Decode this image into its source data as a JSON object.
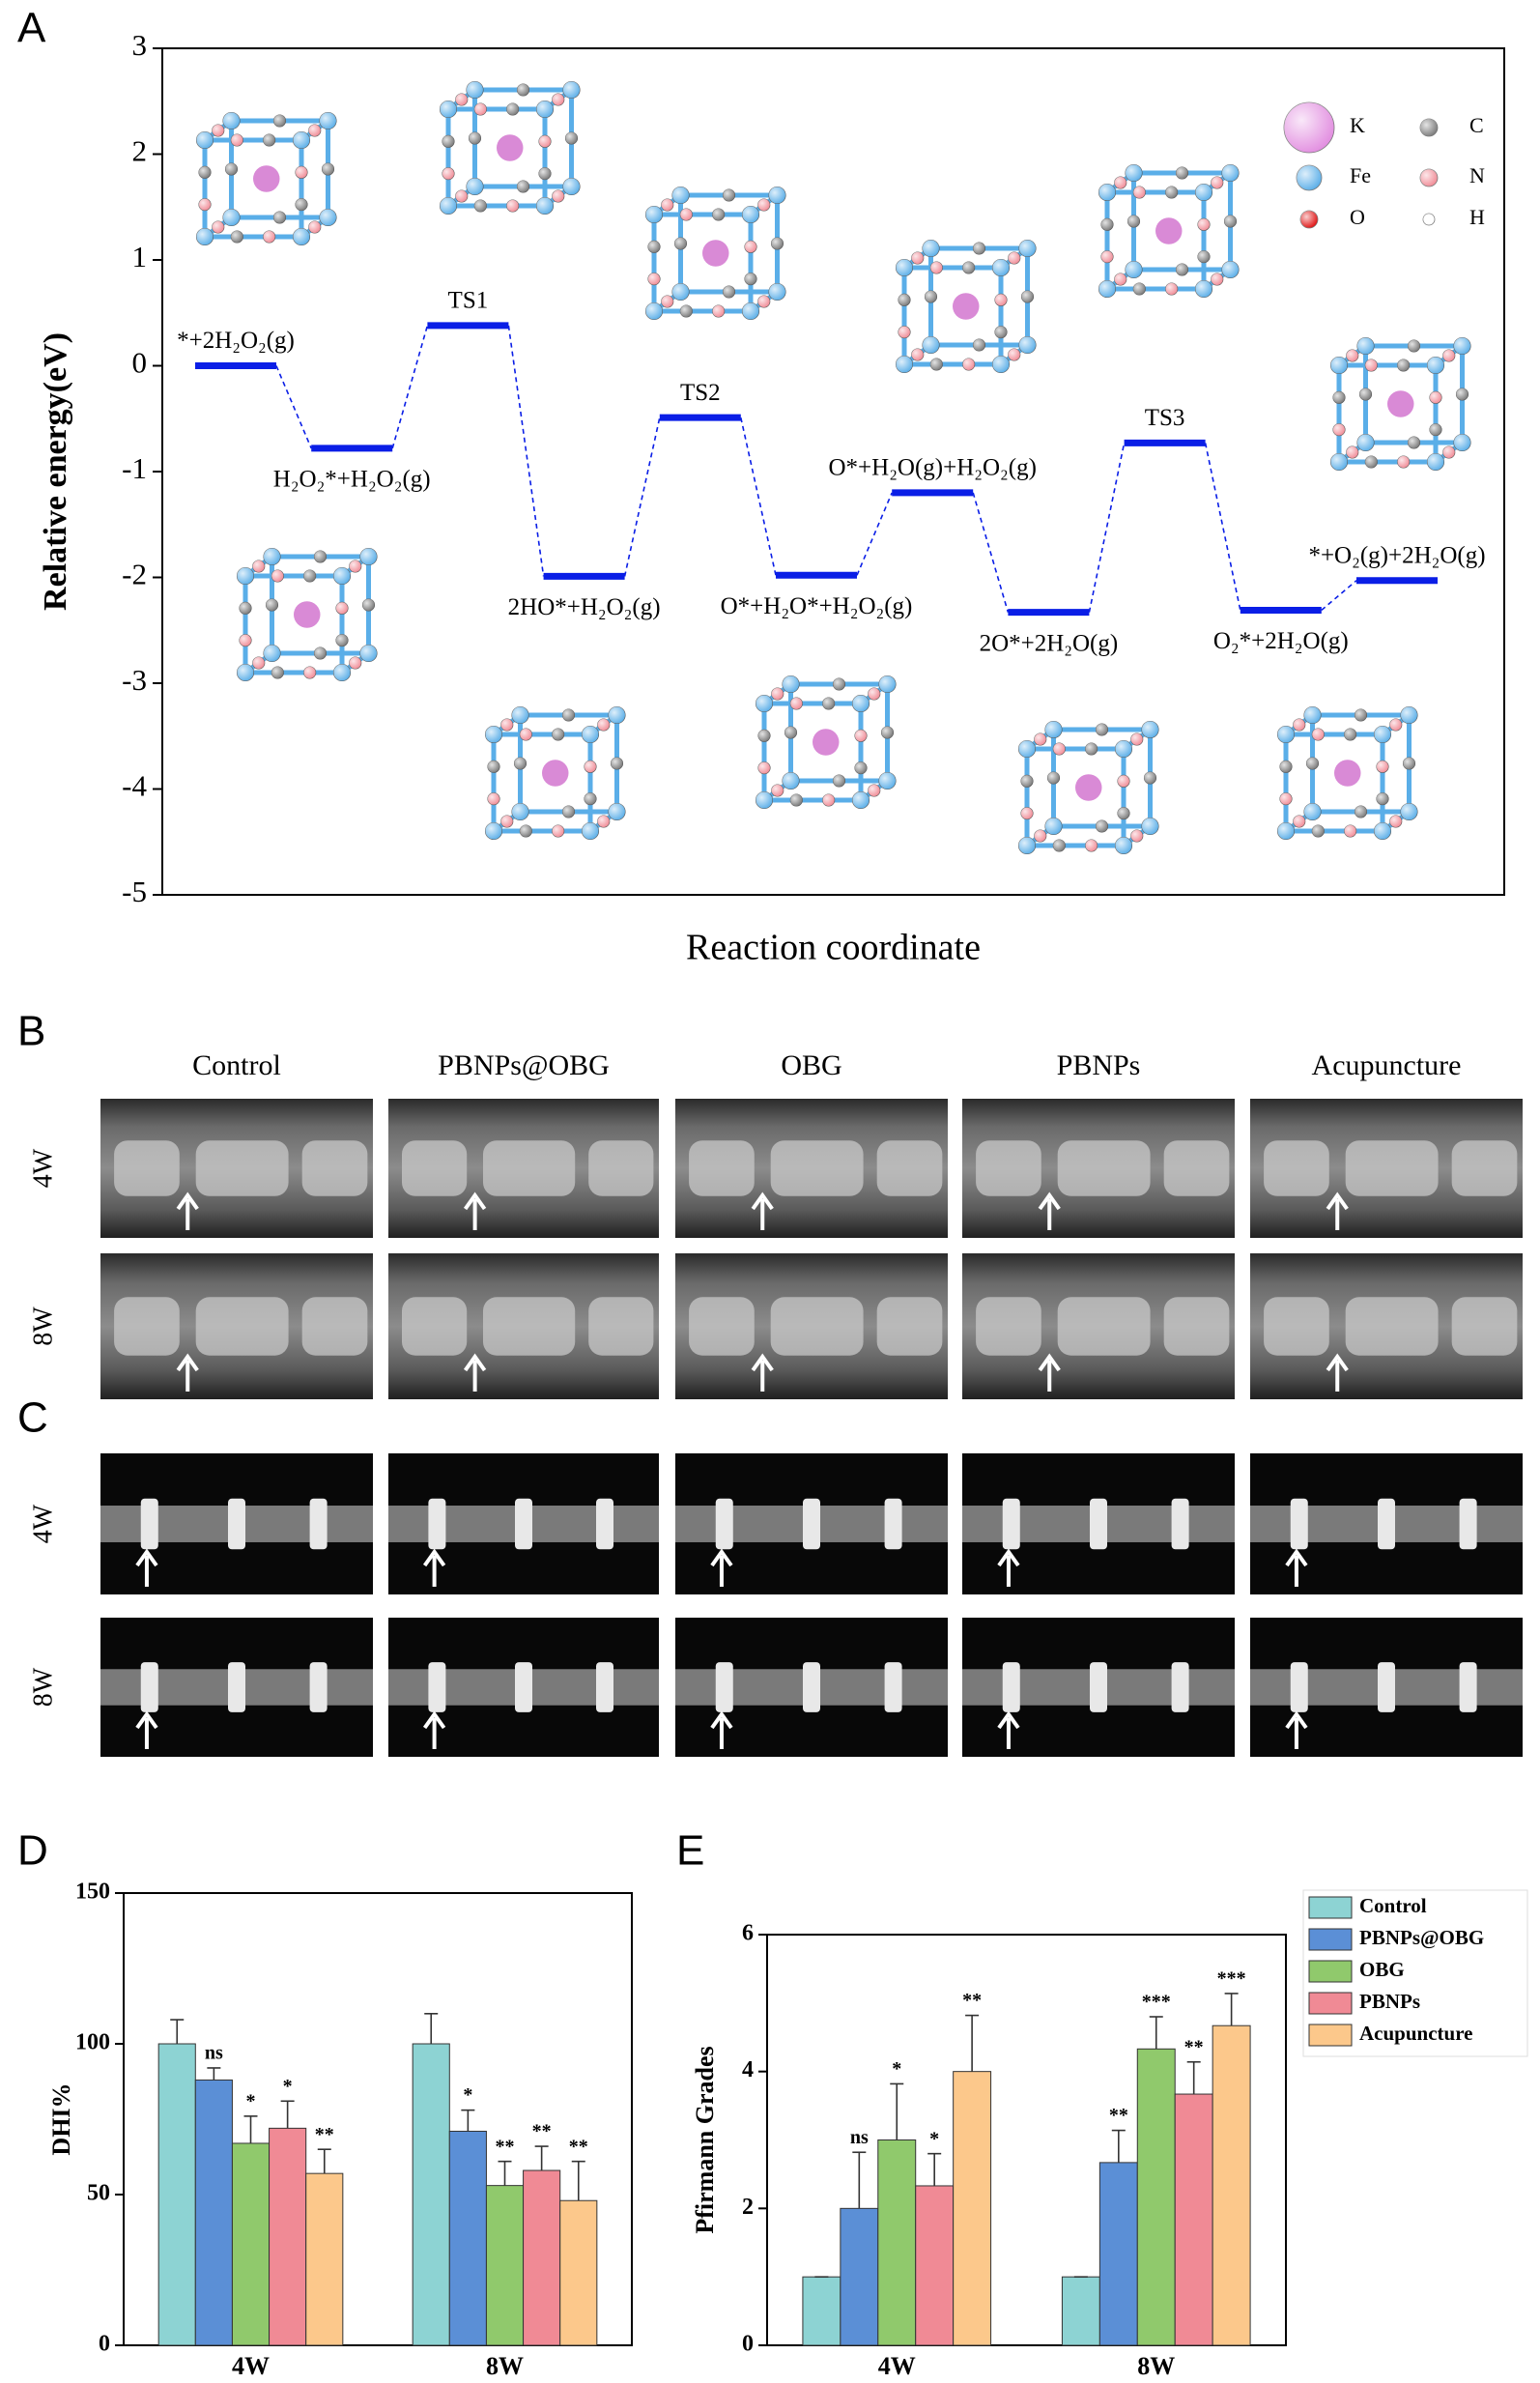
{
  "panels": {
    "letters": [
      "A",
      "B",
      "C",
      "D",
      "E"
    ],
    "image_columns": [
      "Control",
      "PBNPs@OBG",
      "OBG",
      "PBNPs",
      "Acupuncture"
    ],
    "image_rows": [
      "4W",
      "8W"
    ]
  },
  "chart_data": [
    {
      "type": "energy",
      "ylabel": "Relative energy(eV)",
      "xlabel": "Reaction coordinate",
      "ylim": [
        -5,
        3
      ],
      "yticks": [
        -5,
        -4,
        -3,
        -2,
        -1,
        0,
        1,
        2,
        3
      ],
      "color": "#0a1ee6",
      "categories": [
        "*+2H₂O₂(g)",
        "H₂O₂*+H₂O₂(g)",
        "TS1",
        "2HO*+H₂O₂(g)",
        "TS2",
        "O*+H₂O*+H₂O₂(g)",
        "O*+H₂O(g)+H₂O₂(g)",
        "2O*+2H₂O(g)",
        "TS3",
        "O₂*+2H₂O(g)",
        "*+O₂(g)+2H₂O(g)"
      ],
      "values": [
        0,
        -0.78,
        0.38,
        -1.99,
        -0.49,
        -1.98,
        -1.2,
        -2.33,
        -0.73,
        -2.31,
        -2.03
      ],
      "atom_legend": [
        {
          "name": "K",
          "color": "#e28ee0"
        },
        {
          "name": "C",
          "color": "#7a7a7a"
        },
        {
          "name": "Fe",
          "color": "#5aaee8"
        },
        {
          "name": "N",
          "color": "#f08a95"
        },
        {
          "name": "O",
          "color": "#e01010"
        },
        {
          "name": "H",
          "color": "#ffffff"
        }
      ]
    },
    {
      "type": "bar",
      "ylabel": "DHI%",
      "categories": [
        "4W",
        "8W"
      ],
      "ylim": [
        0,
        150
      ],
      "yticks": [
        0,
        50,
        100,
        150
      ],
      "series": [
        {
          "color": "#8dd3d3",
          "values": [
            100,
            100
          ],
          "errors": [
            8,
            10
          ],
          "labels": [
            null,
            null
          ]
        },
        {
          "color": "#5b8fd6",
          "values": [
            88,
            71
          ],
          "errors": [
            4,
            7
          ],
          "labels": [
            "ns",
            "*"
          ]
        },
        {
          "color": "#90c96c",
          "values": [
            67,
            53
          ],
          "errors": [
            9,
            8
          ],
          "labels": [
            "*",
            "**"
          ]
        },
        {
          "color": "#f08a95",
          "values": [
            72,
            58
          ],
          "errors": [
            9,
            8
          ],
          "labels": [
            "*",
            "**"
          ]
        },
        {
          "color": "#fcc88b",
          "values": [
            57,
            48
          ],
          "errors": [
            8,
            13
          ],
          "labels": [
            "**",
            "**"
          ]
        }
      ]
    },
    {
      "type": "bar",
      "ylabel": "Pfirmann Grades",
      "categories": [
        "4W",
        "8W"
      ],
      "ylim": [
        0,
        6
      ],
      "yticks": [
        0,
        2,
        4,
        6
      ],
      "series": [
        {
          "name": "Control",
          "color": "#8dd3d3",
          "values": [
            1,
            1
          ],
          "errors": [
            0,
            0
          ],
          "labels": [
            null,
            null
          ]
        },
        {
          "name": "PBNPs@OBG",
          "color": "#5b8fd6",
          "values": [
            2,
            2.67
          ],
          "errors": [
            0.82,
            0.47
          ],
          "labels": [
            "ns",
            "**"
          ]
        },
        {
          "name": "OBG",
          "color": "#90c96c",
          "values": [
            3,
            4.33
          ],
          "errors": [
            0.82,
            0.47
          ],
          "labels": [
            "*",
            "***"
          ]
        },
        {
          "name": "PBNPs",
          "color": "#f08a95",
          "values": [
            2.33,
            3.67
          ],
          "errors": [
            0.47,
            0.47
          ],
          "labels": [
            "*",
            "**"
          ]
        },
        {
          "name": "Acupuncture",
          "color": "#fcc88b",
          "values": [
            4,
            4.67
          ],
          "errors": [
            0.82,
            0.47
          ],
          "labels": [
            "**",
            "***"
          ]
        }
      ]
    }
  ]
}
